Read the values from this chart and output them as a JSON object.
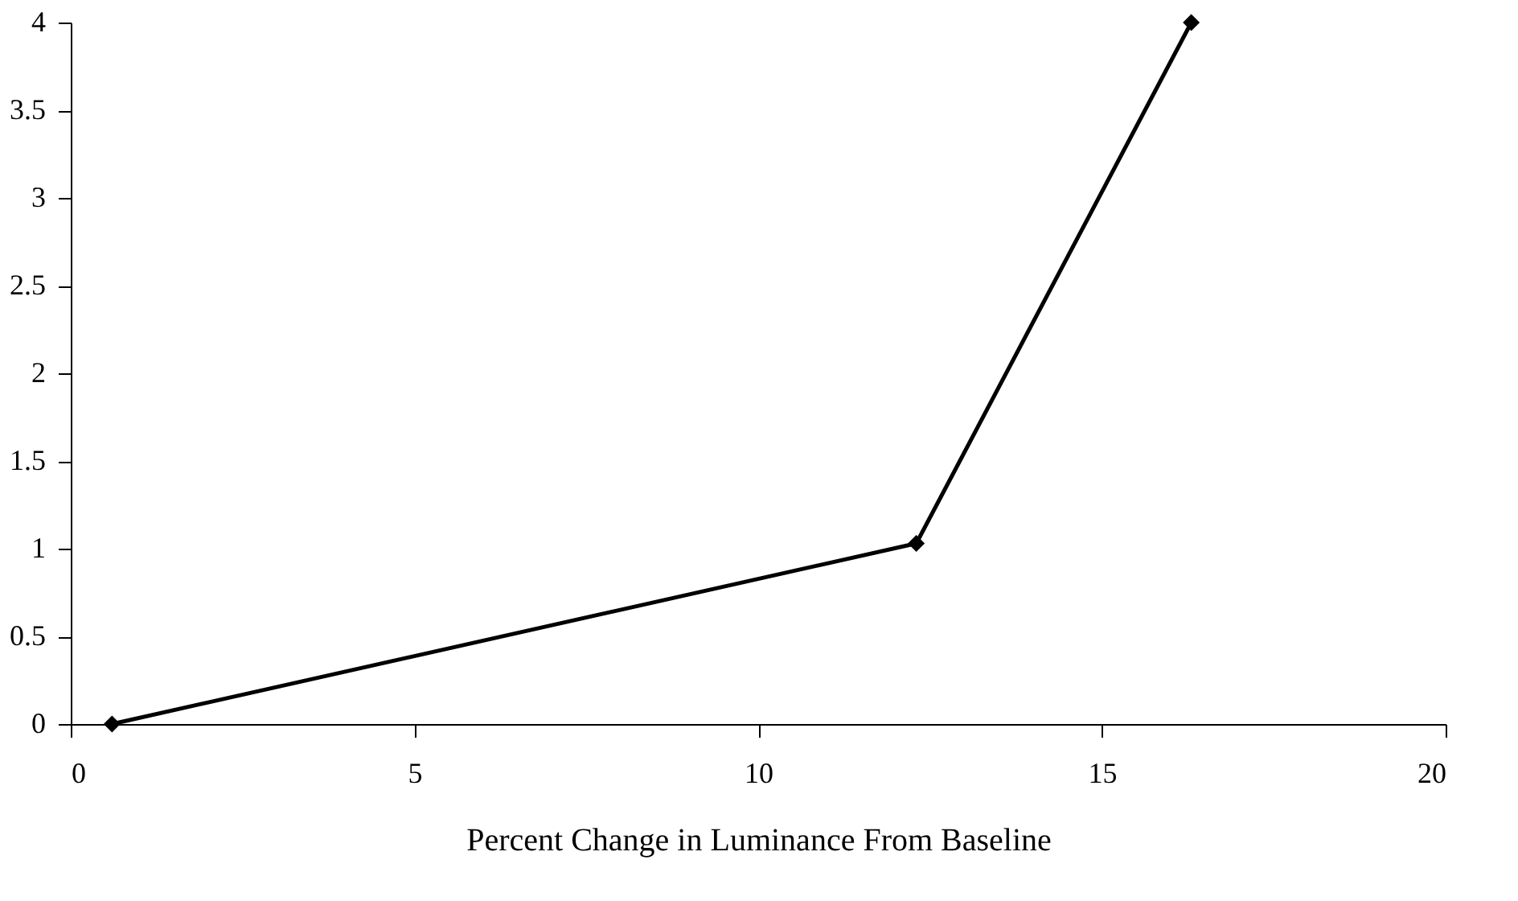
{
  "chart_data": {
    "type": "line",
    "xlabel": "Percent Change in Luminance From Baseline",
    "x": [
      0.6,
      12.3,
      16.3
    ],
    "series": [
      {
        "color": "#000000",
        "values": [
          0,
          1.03,
          4
        ]
      }
    ],
    "xlim": [
      0,
      20
    ],
    "xticks": [
      0,
      5,
      10,
      15,
      20
    ],
    "ylim": [
      0,
      4
    ],
    "yticks": [
      0,
      0.5,
      1,
      1.5,
      2,
      2.5,
      3,
      3.5,
      4
    ],
    "marker": "diamond",
    "line_style": "solid",
    "grid": false
  }
}
